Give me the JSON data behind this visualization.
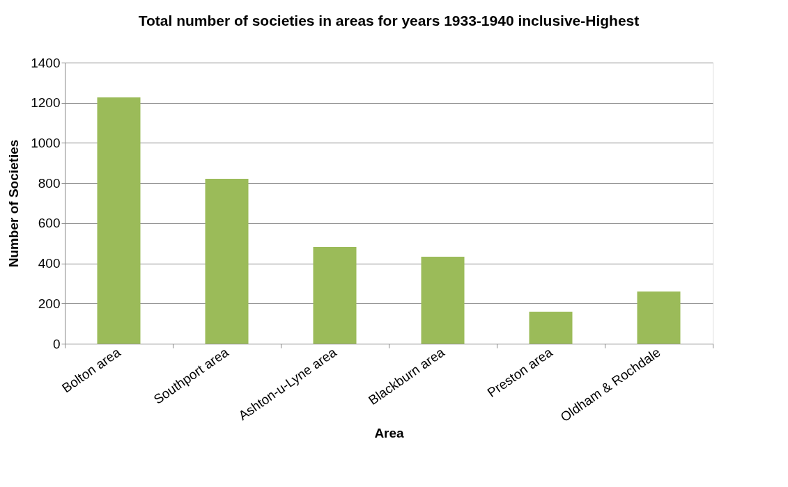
{
  "chart_data": {
    "type": "bar",
    "title": "Total number of societies in areas for years 1933-1940 inclusive-Highest",
    "xlabel": "Area",
    "ylabel": "Number of Societies",
    "categories": [
      "Bolton area",
      "Southport area",
      "Ashton-u-Lyne area",
      "Blackburn area",
      "Preston area",
      "Oldham & Rochdale"
    ],
    "values": [
      1227,
      821,
      482,
      433,
      159,
      260
    ],
    "color": "#9bbb59",
    "ylim": [
      0,
      1400
    ],
    "yticks": [
      0,
      200,
      400,
      600,
      800,
      1000,
      1200,
      1400
    ],
    "grid": "y"
  }
}
